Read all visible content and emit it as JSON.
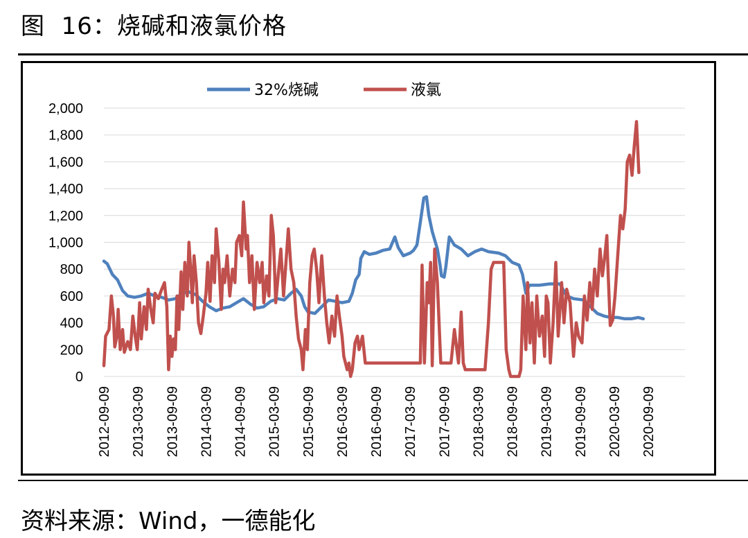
{
  "figure": {
    "title": "图  16：烧碱和液氯价格",
    "source": "资料来源：Wind，一德能化"
  },
  "chart_data": {
    "type": "line",
    "title": "",
    "xlabel": "",
    "ylabel": "",
    "ylim": [
      0,
      2000
    ],
    "yticks": [
      "0",
      "200",
      "400",
      "600",
      "800",
      "1,000",
      "1,200",
      "1,400",
      "1,600",
      "1,800",
      "2,000"
    ],
    "xticks": [
      "2012-09-09",
      "2013-03-09",
      "2013-09-09",
      "2014-03-09",
      "2014-09-09",
      "2015-03-09",
      "2015-09-09",
      "2016-03-09",
      "2016-09-09",
      "2017-03-09",
      "2017-09-09",
      "2018-03-09",
      "2018-09-09",
      "2019-03-09",
      "2019-09-09",
      "2020-03-09",
      "2020-09-09"
    ],
    "grid": "horizontal",
    "legend_position": "top",
    "series": [
      {
        "name": "32%烧碱",
        "color": "#4f81bd",
        "points": [
          [
            0.0,
            860
          ],
          [
            0.1,
            840
          ],
          [
            0.25,
            760
          ],
          [
            0.4,
            720
          ],
          [
            0.55,
            640
          ],
          [
            0.7,
            600
          ],
          [
            0.9,
            590
          ],
          [
            1.1,
            600
          ],
          [
            1.3,
            620
          ],
          [
            1.5,
            600
          ],
          [
            1.7,
            590
          ],
          [
            1.9,
            570
          ],
          [
            2.1,
            580
          ],
          [
            2.3,
            620
          ],
          [
            2.5,
            630
          ],
          [
            2.7,
            610
          ],
          [
            2.9,
            560
          ],
          [
            3.1,
            520
          ],
          [
            3.3,
            490
          ],
          [
            3.5,
            510
          ],
          [
            3.7,
            520
          ],
          [
            3.9,
            550
          ],
          [
            4.1,
            580
          ],
          [
            4.3,
            540
          ],
          [
            4.5,
            510
          ],
          [
            4.7,
            520
          ],
          [
            4.9,
            560
          ],
          [
            5.1,
            580
          ],
          [
            5.3,
            570
          ],
          [
            5.5,
            620
          ],
          [
            5.65,
            650
          ],
          [
            5.8,
            600
          ],
          [
            5.9,
            520
          ],
          [
            6.0,
            480
          ],
          [
            6.2,
            470
          ],
          [
            6.4,
            520
          ],
          [
            6.6,
            570
          ],
          [
            6.8,
            560
          ],
          [
            7.0,
            550
          ],
          [
            7.2,
            560
          ],
          [
            7.3,
            620
          ],
          [
            7.4,
            720
          ],
          [
            7.5,
            760
          ],
          [
            7.55,
            880
          ],
          [
            7.65,
            930
          ],
          [
            7.8,
            910
          ],
          [
            8.0,
            920
          ],
          [
            8.2,
            940
          ],
          [
            8.4,
            950
          ],
          [
            8.55,
            1040
          ],
          [
            8.65,
            960
          ],
          [
            8.8,
            900
          ],
          [
            9.0,
            920
          ],
          [
            9.1,
            940
          ],
          [
            9.2,
            980
          ],
          [
            9.3,
            1150
          ],
          [
            9.4,
            1330
          ],
          [
            9.48,
            1340
          ],
          [
            9.55,
            1200
          ],
          [
            9.65,
            1080
          ],
          [
            9.8,
            950
          ],
          [
            9.88,
            830
          ],
          [
            9.92,
            750
          ],
          [
            10.0,
            740
          ],
          [
            10.05,
            820
          ],
          [
            10.15,
            1040
          ],
          [
            10.3,
            980
          ],
          [
            10.5,
            950
          ],
          [
            10.7,
            900
          ],
          [
            10.9,
            930
          ],
          [
            11.1,
            950
          ],
          [
            11.3,
            930
          ],
          [
            11.6,
            920
          ],
          [
            11.8,
            900
          ],
          [
            12.0,
            850
          ],
          [
            12.2,
            830
          ],
          [
            12.3,
            760
          ],
          [
            12.4,
            620
          ],
          [
            12.5,
            680
          ],
          [
            12.8,
            680
          ],
          [
            13.1,
            690
          ],
          [
            13.4,
            690
          ],
          [
            13.6,
            600
          ],
          [
            13.8,
            580
          ],
          [
            14.1,
            570
          ],
          [
            14.3,
            520
          ],
          [
            14.5,
            470
          ],
          [
            14.7,
            450
          ],
          [
            14.9,
            440
          ],
          [
            15.1,
            440
          ],
          [
            15.3,
            430
          ],
          [
            15.5,
            430
          ],
          [
            15.7,
            440
          ],
          [
            15.85,
            430
          ]
        ]
      },
      {
        "name": "液氯",
        "color": "#c0504d",
        "points": [
          [
            0.0,
            80
          ],
          [
            0.05,
            300
          ],
          [
            0.15,
            350
          ],
          [
            0.22,
            600
          ],
          [
            0.28,
            450
          ],
          [
            0.32,
            220
          ],
          [
            0.38,
            300
          ],
          [
            0.42,
            500
          ],
          [
            0.48,
            200
          ],
          [
            0.55,
            350
          ],
          [
            0.6,
            180
          ],
          [
            0.7,
            260
          ],
          [
            0.78,
            200
          ],
          [
            0.85,
            450
          ],
          [
            0.92,
            300
          ],
          [
            0.98,
            200
          ],
          [
            1.05,
            550
          ],
          [
            1.1,
            280
          ],
          [
            1.18,
            520
          ],
          [
            1.25,
            350
          ],
          [
            1.3,
            650
          ],
          [
            1.38,
            500
          ],
          [
            1.45,
            400
          ],
          [
            1.5,
            620
          ],
          [
            1.6,
            580
          ],
          [
            1.7,
            650
          ],
          [
            1.78,
            700
          ],
          [
            1.85,
            520
          ],
          [
            1.9,
            50
          ],
          [
            1.95,
            300
          ],
          [
            2.0,
            150
          ],
          [
            2.05,
            280
          ],
          [
            2.1,
            200
          ],
          [
            2.15,
            600
          ],
          [
            2.2,
            350
          ],
          [
            2.27,
            780
          ],
          [
            2.32,
            500
          ],
          [
            2.38,
            850
          ],
          [
            2.45,
            600
          ],
          [
            2.5,
            1000
          ],
          [
            2.55,
            800
          ],
          [
            2.6,
            550
          ],
          [
            2.65,
            900
          ],
          [
            2.72,
            700
          ],
          [
            2.78,
            400
          ],
          [
            2.85,
            320
          ],
          [
            2.92,
            450
          ],
          [
            3.0,
            620
          ],
          [
            3.05,
            850
          ],
          [
            3.12,
            560
          ],
          [
            3.18,
            900
          ],
          [
            3.25,
            700
          ],
          [
            3.3,
            1100
          ],
          [
            3.38,
            850
          ],
          [
            3.45,
            500
          ],
          [
            3.5,
            800
          ],
          [
            3.55,
            700
          ],
          [
            3.62,
            900
          ],
          [
            3.7,
            600
          ],
          [
            3.78,
            800
          ],
          [
            3.85,
            700
          ],
          [
            3.9,
            1000
          ],
          [
            3.98,
            1050
          ],
          [
            4.05,
            900
          ],
          [
            4.1,
            1300
          ],
          [
            4.18,
            950
          ],
          [
            4.22,
            1050
          ],
          [
            4.28,
            700
          ],
          [
            4.35,
            900
          ],
          [
            4.42,
            500
          ],
          [
            4.5,
            850
          ],
          [
            4.58,
            700
          ],
          [
            4.65,
            850
          ],
          [
            4.7,
            550
          ],
          [
            4.78,
            750
          ],
          [
            4.85,
            600
          ],
          [
            4.92,
            1200
          ],
          [
            4.98,
            1050
          ],
          [
            5.05,
            550
          ],
          [
            5.12,
            750
          ],
          [
            5.2,
            950
          ],
          [
            5.28,
            600
          ],
          [
            5.35,
            850
          ],
          [
            5.42,
            1100
          ],
          [
            5.5,
            800
          ],
          [
            5.58,
            700
          ],
          [
            5.65,
            450
          ],
          [
            5.72,
            280
          ],
          [
            5.8,
            200
          ],
          [
            5.85,
            50
          ],
          [
            5.92,
            350
          ],
          [
            5.98,
            200
          ],
          [
            6.05,
            700
          ],
          [
            6.12,
            900
          ],
          [
            6.18,
            950
          ],
          [
            6.25,
            800
          ],
          [
            6.32,
            550
          ],
          [
            6.4,
            900
          ],
          [
            6.48,
            600
          ],
          [
            6.55,
            400
          ],
          [
            6.62,
            250
          ],
          [
            6.7,
            450
          ],
          [
            6.78,
            300
          ],
          [
            6.85,
            600
          ],
          [
            6.92,
            450
          ],
          [
            7.0,
            300
          ],
          [
            7.05,
            150
          ],
          [
            7.15,
            50
          ],
          [
            7.2,
            100
          ],
          [
            7.25,
            0
          ],
          [
            7.3,
            50
          ],
          [
            7.38,
            250
          ],
          [
            7.45,
            300
          ],
          [
            7.5,
            200
          ],
          [
            7.6,
            300
          ],
          [
            7.68,
            100
          ],
          [
            8.0,
            100
          ],
          [
            8.5,
            100
          ],
          [
            9.0,
            100
          ],
          [
            9.3,
            100
          ],
          [
            9.35,
            830
          ],
          [
            9.42,
            100
          ],
          [
            9.5,
            700
          ],
          [
            9.55,
            550
          ],
          [
            9.6,
            850
          ],
          [
            9.65,
            80
          ],
          [
            9.72,
            950
          ],
          [
            9.8,
            700
          ],
          [
            9.9,
            100
          ],
          [
            10.2,
            100
          ],
          [
            10.3,
            350
          ],
          [
            10.42,
            100
          ],
          [
            10.5,
            480
          ],
          [
            10.56,
            100
          ],
          [
            10.62,
            50
          ],
          [
            11.0,
            50
          ],
          [
            11.2,
            50
          ],
          [
            11.3,
            400
          ],
          [
            11.38,
            800
          ],
          [
            11.45,
            850
          ],
          [
            11.6,
            850
          ],
          [
            11.75,
            850
          ],
          [
            11.82,
            200
          ],
          [
            11.9,
            50
          ],
          [
            11.95,
            0
          ],
          [
            12.2,
            0
          ],
          [
            12.25,
            50
          ],
          [
            12.32,
            600
          ],
          [
            12.4,
            200
          ],
          [
            12.45,
            700
          ],
          [
            12.52,
            250
          ],
          [
            12.58,
            550
          ],
          [
            12.65,
            100
          ],
          [
            12.72,
            600
          ],
          [
            12.8,
            300
          ],
          [
            12.88,
            450
          ],
          [
            12.95,
            150
          ],
          [
            13.0,
            600
          ],
          [
            13.05,
            550
          ],
          [
            13.12,
            100
          ],
          [
            13.2,
            400
          ],
          [
            13.28,
            850
          ],
          [
            13.35,
            300
          ],
          [
            13.45,
            700
          ],
          [
            13.52,
            400
          ],
          [
            13.6,
            650
          ],
          [
            13.7,
            550
          ],
          [
            13.8,
            150
          ],
          [
            13.88,
            400
          ],
          [
            13.95,
            300
          ],
          [
            14.05,
            250
          ],
          [
            14.12,
            600
          ],
          [
            14.2,
            420
          ],
          [
            14.28,
            700
          ],
          [
            14.35,
            500
          ],
          [
            14.42,
            800
          ],
          [
            14.5,
            600
          ],
          [
            14.58,
            950
          ],
          [
            14.65,
            750
          ],
          [
            14.72,
            900
          ],
          [
            14.78,
            1050
          ],
          [
            14.82,
            750
          ],
          [
            14.88,
            380
          ],
          [
            14.95,
            420
          ],
          [
            15.02,
            600
          ],
          [
            15.1,
            900
          ],
          [
            15.18,
            1200
          ],
          [
            15.25,
            1100
          ],
          [
            15.32,
            1250
          ],
          [
            15.38,
            1600
          ],
          [
            15.45,
            1650
          ],
          [
            15.52,
            1500
          ],
          [
            15.58,
            1700
          ],
          [
            15.65,
            1900
          ],
          [
            15.72,
            1520
          ]
        ]
      }
    ]
  }
}
